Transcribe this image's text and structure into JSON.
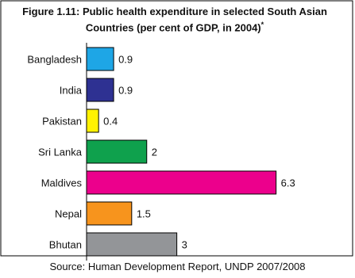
{
  "chart_data": {
    "type": "bar",
    "orientation": "horizontal",
    "title": "Figure 1.11: Public health expenditure in selected South Asian Countries (per cent of GDP, in 2004)",
    "title_marker": "*",
    "categories": [
      "Bangladesh",
      "India",
      "Pakistan",
      "Sri Lanka",
      "Maldives",
      "Nepal",
      "Bhutan"
    ],
    "values": [
      0.9,
      0.9,
      0.4,
      2,
      6.3,
      1.5,
      3
    ],
    "value_labels": [
      "0.9",
      "0.9",
      "0.4",
      "2",
      "6.3",
      "1.5",
      "3"
    ],
    "colors": [
      "#1ea6e6",
      "#2e3192",
      "#fff200",
      "#0fa14d",
      "#ec008c",
      "#f7941d",
      "#939598"
    ],
    "xlim": [
      0,
      6.6
    ],
    "xlabel": "",
    "ylabel": "",
    "grid": false,
    "source": "Source: Human Development Report, UNDP 2007/2008"
  }
}
